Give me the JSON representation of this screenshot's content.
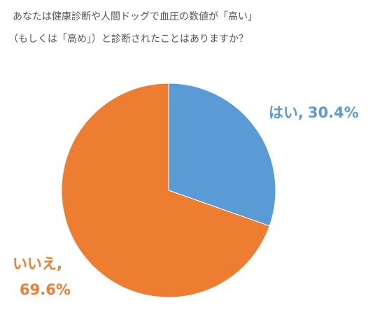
{
  "chart_data": {
    "type": "pie",
    "title": [
      "あなたは健康診断や人間ドッグで血圧の数値が「高い」",
      "（もしくは「高め」）と診断されたことはありますか？"
    ],
    "categories": [
      "はい,",
      "いいえ,"
    ],
    "values": [
      30.4,
      69.6
    ],
    "value_labels": [
      "30.4%",
      "69.6%"
    ],
    "colors": [
      "#5b9bd5",
      "#ed7d31"
    ]
  }
}
